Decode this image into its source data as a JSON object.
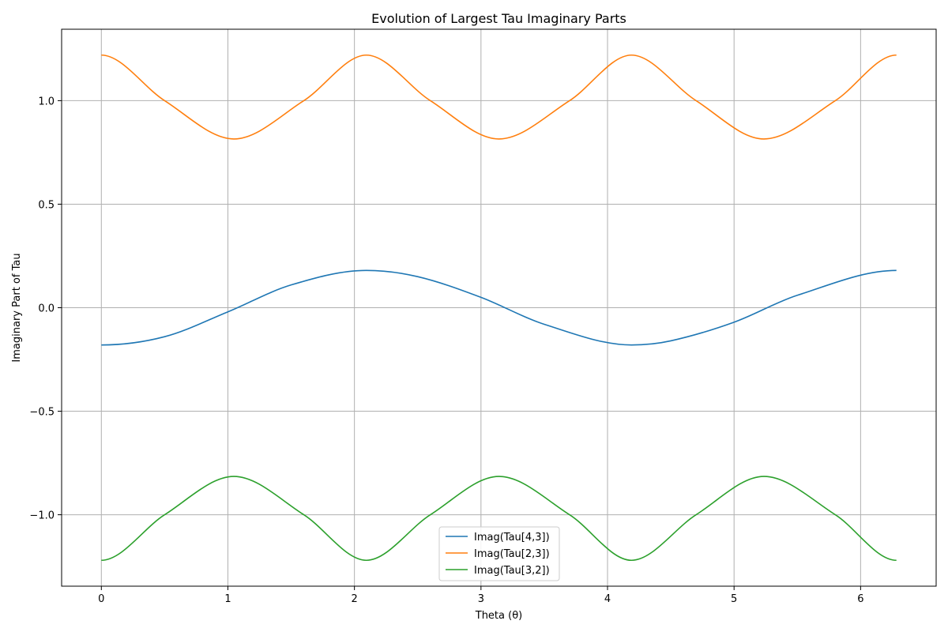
{
  "chart_data": {
    "type": "line",
    "title": "Evolution of Largest Tau Imaginary Parts",
    "xlabel": "Theta (θ)",
    "ylabel": "Imaginary Part of Tau",
    "xlim": [
      -0.314,
      6.597
    ],
    "ylim": [
      -1.345,
      1.345
    ],
    "xticks": [
      0,
      1,
      2,
      3,
      4,
      5,
      6
    ],
    "xtick_labels": [
      "0",
      "1",
      "2",
      "3",
      "4",
      "5",
      "6"
    ],
    "yticks": [
      1.0,
      0.5,
      0.0,
      -0.5,
      -1.0
    ],
    "ytick_labels": [
      "1.0",
      "0.5",
      "0.0",
      "−0.5",
      "−1.0"
    ],
    "grid": true,
    "legend_position": "bottom-center",
    "series": [
      {
        "name": "Imag(Tau[4,3])",
        "color": "#1f77b4",
        "x": [
          0,
          0.5,
          1.0,
          1.5,
          2.094,
          2.5,
          3.0,
          3.5,
          4.189,
          4.5,
          5.0,
          5.5,
          6.283
        ],
        "y": [
          -0.18,
          -0.14,
          -0.02,
          0.11,
          0.18,
          0.15,
          0.05,
          -0.08,
          -0.18,
          -0.16,
          -0.07,
          0.06,
          0.18
        ]
      },
      {
        "name": "Imag(Tau[2,3])",
        "color": "#ff7f0e",
        "x": [
          0,
          0.5,
          1.047,
          1.6,
          2.094,
          2.6,
          3.142,
          3.7,
          4.189,
          4.7,
          5.236,
          5.8,
          6.283
        ],
        "y": [
          1.22,
          1.0,
          0.815,
          1.0,
          1.22,
          1.0,
          0.815,
          1.0,
          1.22,
          1.0,
          0.815,
          1.0,
          1.22
        ]
      },
      {
        "name": "Imag(Tau[3,2])",
        "color": "#2ca02c",
        "x": [
          0,
          0.5,
          1.047,
          1.6,
          2.094,
          2.6,
          3.142,
          3.7,
          4.189,
          4.7,
          5.236,
          5.8,
          6.283
        ],
        "y": [
          -1.22,
          -1.0,
          -0.815,
          -1.0,
          -1.22,
          -1.0,
          -0.815,
          -1.0,
          -1.22,
          -1.0,
          -0.815,
          -1.0,
          -1.22
        ]
      }
    ]
  }
}
